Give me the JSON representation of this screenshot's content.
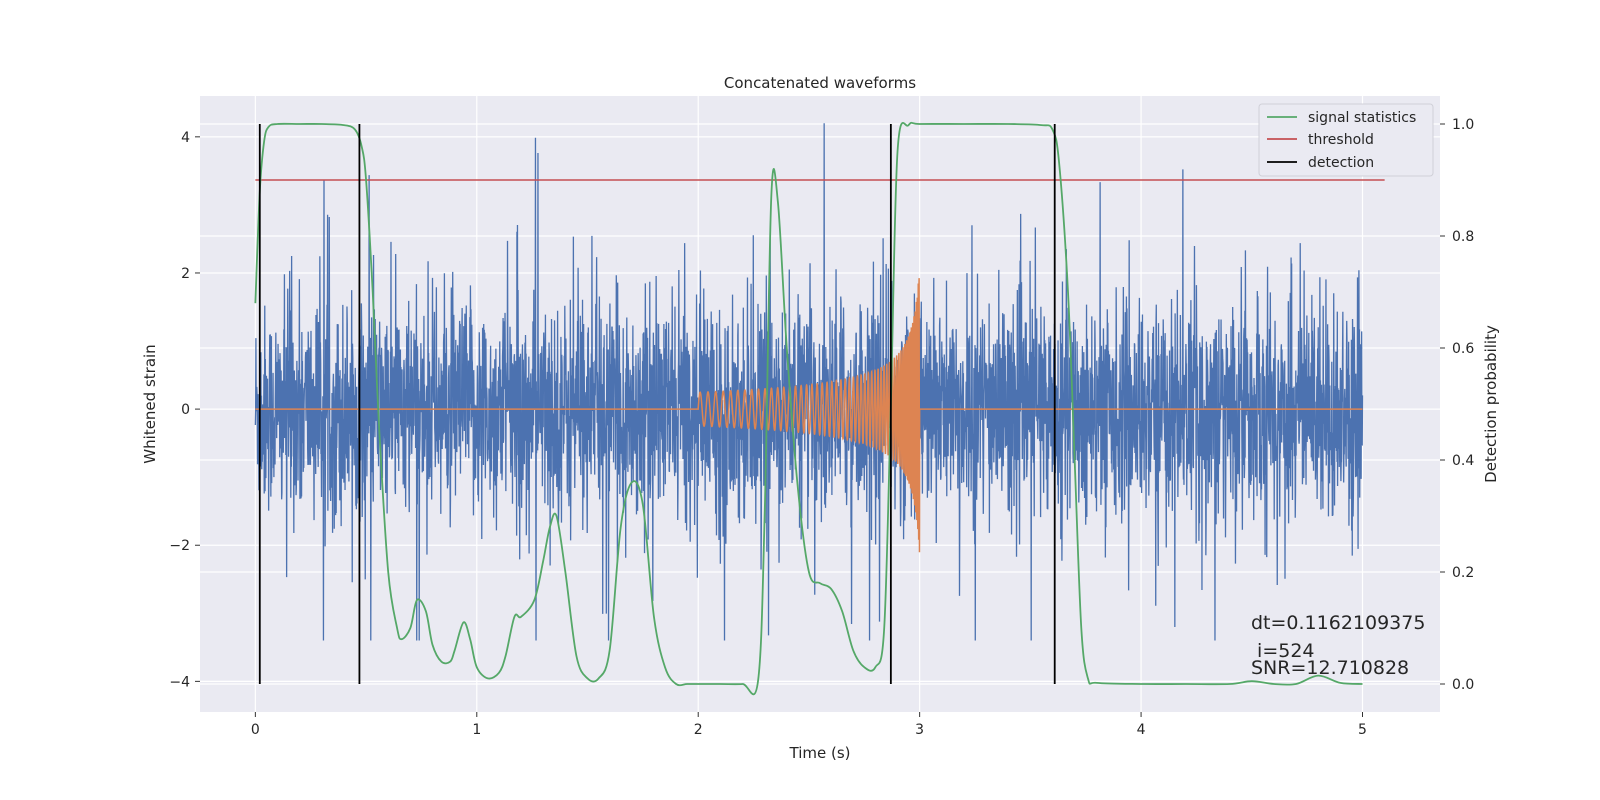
{
  "chart_data": {
    "type": "line",
    "title": "Concatenated waveforms",
    "xlabel": "Time (s)",
    "ylabel": "Whitened strain",
    "y2label": "Detection probability",
    "xlim": [
      -0.25,
      5.35
    ],
    "ylim": [
      -4.45,
      4.6
    ],
    "y2lim": [
      -0.05,
      1.05
    ],
    "x_ticks": [
      "0",
      "1",
      "2",
      "3",
      "4",
      "5"
    ],
    "y_ticks": [
      "−4",
      "−2",
      "0",
      "2",
      "4"
    ],
    "y2_ticks": [
      "0.0",
      "0.2",
      "0.4",
      "0.6",
      "0.8",
      "1.0"
    ],
    "grid": true,
    "legend_position": "top-right",
    "legend": [
      "signal statistics",
      "threshold",
      "detection"
    ],
    "colors": {
      "strain": "#4c72b0",
      "injection": "#dd8452",
      "signal_statistics": "#55a868",
      "threshold": "#c44e52",
      "detection": "#000000",
      "background": "#eaeaf2",
      "grid": "#ffffff"
    },
    "threshold": 0.9,
    "detections": [
      0.02,
      0.47,
      2.87,
      3.61
    ],
    "strain_noise": {
      "x_range": [
        0,
        5
      ],
      "std": 0.75,
      "approx_range": [
        -3.3,
        4.2
      ]
    },
    "injection": {
      "x_range": [
        2.0,
        3.0
      ],
      "amplitude_start": 0.25,
      "amplitude_peak": 2.2
    },
    "signal_statistics": {
      "x": [
        0.0,
        0.02,
        0.04,
        0.06,
        0.1,
        0.2,
        0.3,
        0.4,
        0.45,
        0.48,
        0.5,
        0.53,
        0.56,
        0.6,
        0.64,
        0.66,
        0.7,
        0.73,
        0.77,
        0.8,
        0.84,
        0.88,
        0.9,
        0.94,
        0.97,
        1.0,
        1.05,
        1.1,
        1.13,
        1.17,
        1.2,
        1.26,
        1.3,
        1.33,
        1.36,
        1.4,
        1.45,
        1.5,
        1.55,
        1.6,
        1.65,
        1.7,
        1.75,
        1.8,
        1.85,
        1.9,
        1.95,
        2.0,
        2.1,
        2.2,
        2.27,
        2.3,
        2.33,
        2.36,
        2.4,
        2.45,
        2.5,
        2.55,
        2.6,
        2.65,
        2.7,
        2.75,
        2.8,
        2.84,
        2.87,
        2.9,
        2.95,
        3.0,
        3.2,
        3.4,
        3.55,
        3.6,
        3.63,
        3.67,
        3.7,
        3.73,
        3.76,
        3.8,
        4.0,
        4.2,
        4.4,
        4.5,
        4.6,
        4.7,
        4.8,
        4.9,
        5.0
      ],
      "y": [
        0.68,
        0.88,
        0.97,
        0.995,
        1.0,
        1.0,
        1.0,
        0.998,
        0.99,
        0.96,
        0.9,
        0.7,
        0.45,
        0.2,
        0.1,
        0.08,
        0.1,
        0.15,
        0.13,
        0.07,
        0.04,
        0.04,
        0.06,
        0.11,
        0.08,
        0.03,
        0.01,
        0.02,
        0.05,
        0.12,
        0.12,
        0.15,
        0.22,
        0.28,
        0.3,
        0.2,
        0.05,
        0.01,
        0.01,
        0.06,
        0.28,
        0.36,
        0.32,
        0.12,
        0.03,
        0.0,
        0.0,
        0.0,
        0.0,
        0.0,
        0.005,
        0.3,
        0.87,
        0.86,
        0.6,
        0.35,
        0.2,
        0.18,
        0.17,
        0.13,
        0.06,
        0.03,
        0.03,
        0.1,
        0.5,
        0.95,
        0.998,
        1.0,
        1.0,
        1.0,
        0.998,
        0.99,
        0.93,
        0.7,
        0.4,
        0.1,
        0.01,
        0.002,
        0.0,
        0.0,
        0.0,
        0.005,
        0.0,
        0.0,
        0.015,
        0.002,
        0.0
      ]
    },
    "annotations": {
      "dt": "dt=0.1162109375",
      "i": " i=524",
      "snr": "SNR=12.710828"
    }
  }
}
